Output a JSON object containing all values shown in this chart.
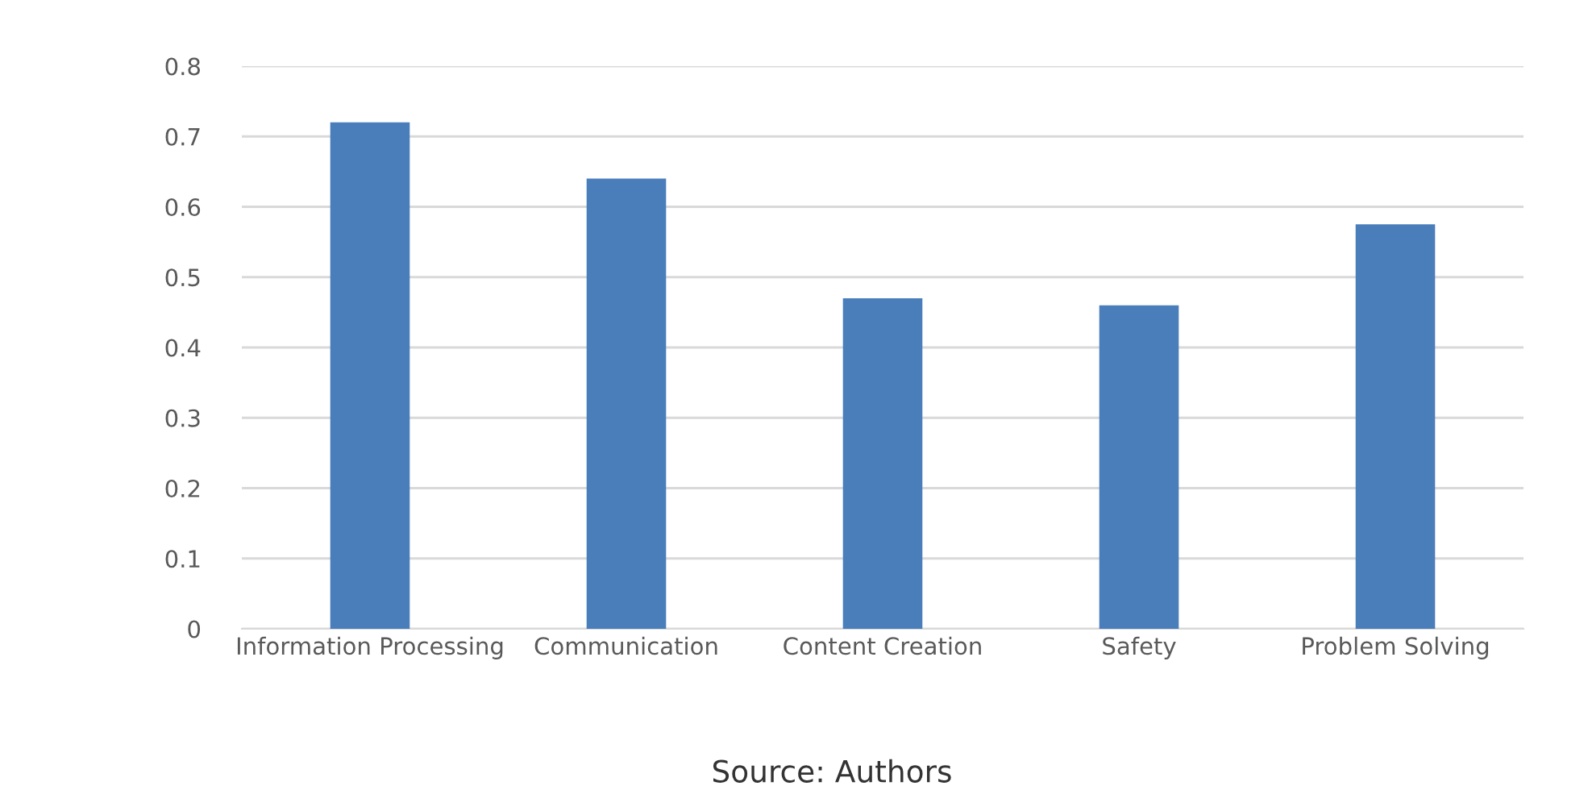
{
  "chart_data": {
    "type": "bar",
    "categories": [
      "Information Processing",
      "Communication",
      "Content Creation",
      "Safety",
      "Problem Solving"
    ],
    "values": [
      0.72,
      0.64,
      0.47,
      0.46,
      0.575
    ],
    "color": "#4a7ebb",
    "ylim": [
      0,
      0.8
    ],
    "yticks": [
      0,
      0.1,
      0.2,
      0.3,
      0.4,
      0.5,
      0.6,
      0.7,
      0.8
    ],
    "grid": "y",
    "legend": false,
    "annotations": [
      "Source: Authors"
    ]
  }
}
